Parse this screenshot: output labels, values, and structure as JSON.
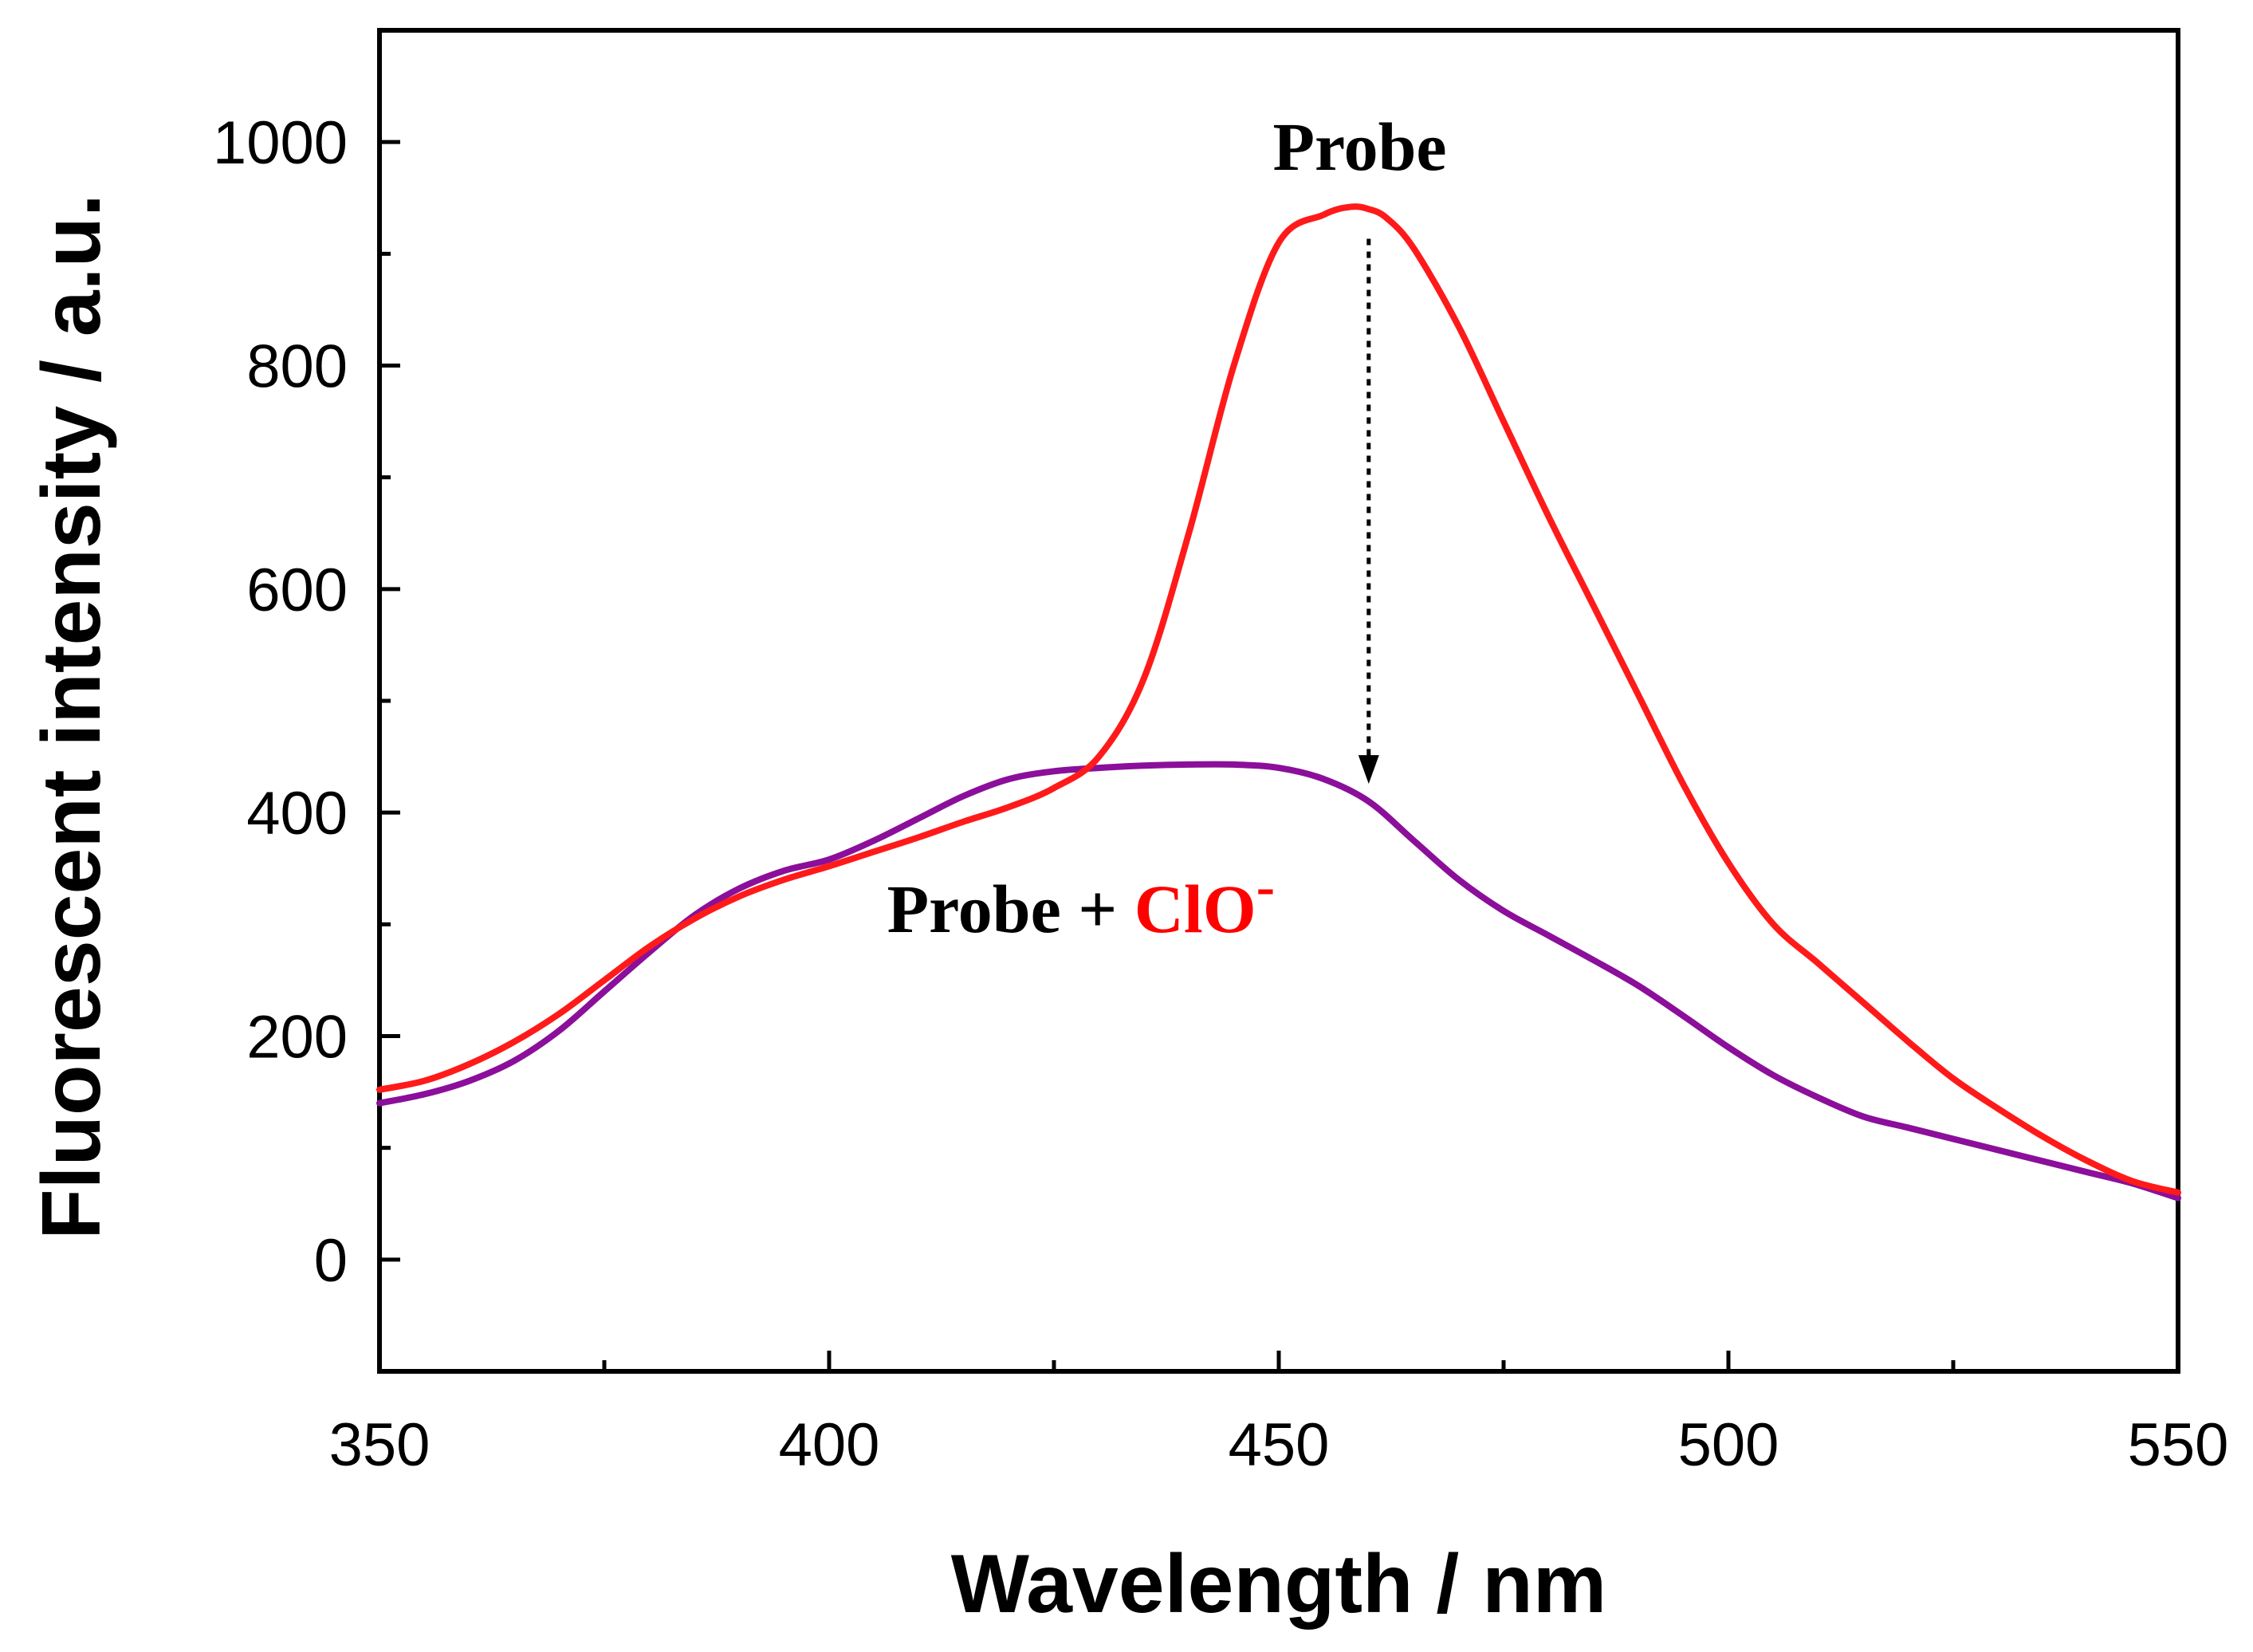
{
  "chart_data": {
    "type": "line",
    "title": "",
    "xlabel": "Wavelength / nm",
    "ylabel": "Fluorescent intensity / a.u.",
    "xlim": [
      350,
      550
    ],
    "ylim": [
      -100,
      1100
    ],
    "x_ticks": [
      350,
      400,
      450,
      500,
      550
    ],
    "x_minor_ticks": [
      375,
      425,
      475,
      525
    ],
    "y_ticks": [
      0,
      200,
      400,
      600,
      800,
      1000
    ],
    "y_minor_ticks": [
      100,
      300,
      500,
      700,
      900
    ],
    "grid": false,
    "series": [
      {
        "name": "Probe",
        "color": "#ff1a1a",
        "x": [
          350,
          355,
          360,
          365,
          370,
          375,
          380,
          385,
          390,
          395,
          400,
          405,
          410,
          415,
          420,
          425,
          430,
          435,
          440,
          445,
          450,
          455,
          458,
          460,
          462,
          465,
          470,
          475,
          480,
          485,
          490,
          495,
          500,
          505,
          510,
          515,
          520,
          525,
          530,
          535,
          540,
          545,
          550
        ],
        "values": [
          152,
          160,
          175,
          195,
          220,
          250,
          280,
          305,
          325,
          340,
          352,
          365,
          378,
          392,
          405,
          422,
          450,
          520,
          650,
          800,
          910,
          935,
          942,
          940,
          932,
          905,
          835,
          750,
          665,
          585,
          505,
          425,
          355,
          300,
          265,
          230,
          195,
          162,
          135,
          110,
          88,
          70,
          60
        ]
      },
      {
        "name": "Probe + ClO-",
        "color": "#8b0f9a",
        "x": [
          350,
          355,
          360,
          365,
          370,
          375,
          380,
          385,
          390,
          395,
          400,
          405,
          410,
          415,
          420,
          425,
          430,
          435,
          440,
          445,
          450,
          455,
          460,
          465,
          470,
          475,
          480,
          485,
          490,
          495,
          500,
          505,
          510,
          515,
          520,
          525,
          530,
          535,
          540,
          545,
          550
        ],
        "values": [
          140,
          148,
          160,
          178,
          205,
          240,
          275,
          308,
          332,
          348,
          358,
          375,
          395,
          415,
          430,
          437,
          440,
          442,
          443,
          443,
          440,
          430,
          410,
          375,
          340,
          312,
          290,
          268,
          245,
          218,
          190,
          165,
          145,
          128,
          118,
          108,
          98,
          88,
          78,
          68,
          55
        ]
      }
    ],
    "annotations": [
      {
        "text": "Probe",
        "near": "top of Probe peak"
      },
      {
        "text_black": "Probe + ",
        "text_red": "ClO",
        "superscript": "-",
        "near": "below Probe + ClO- curve"
      },
      {
        "type": "dotted-arrow",
        "from_x": 460,
        "from_y": 942,
        "to_x": 460,
        "to_y": 420
      }
    ]
  }
}
